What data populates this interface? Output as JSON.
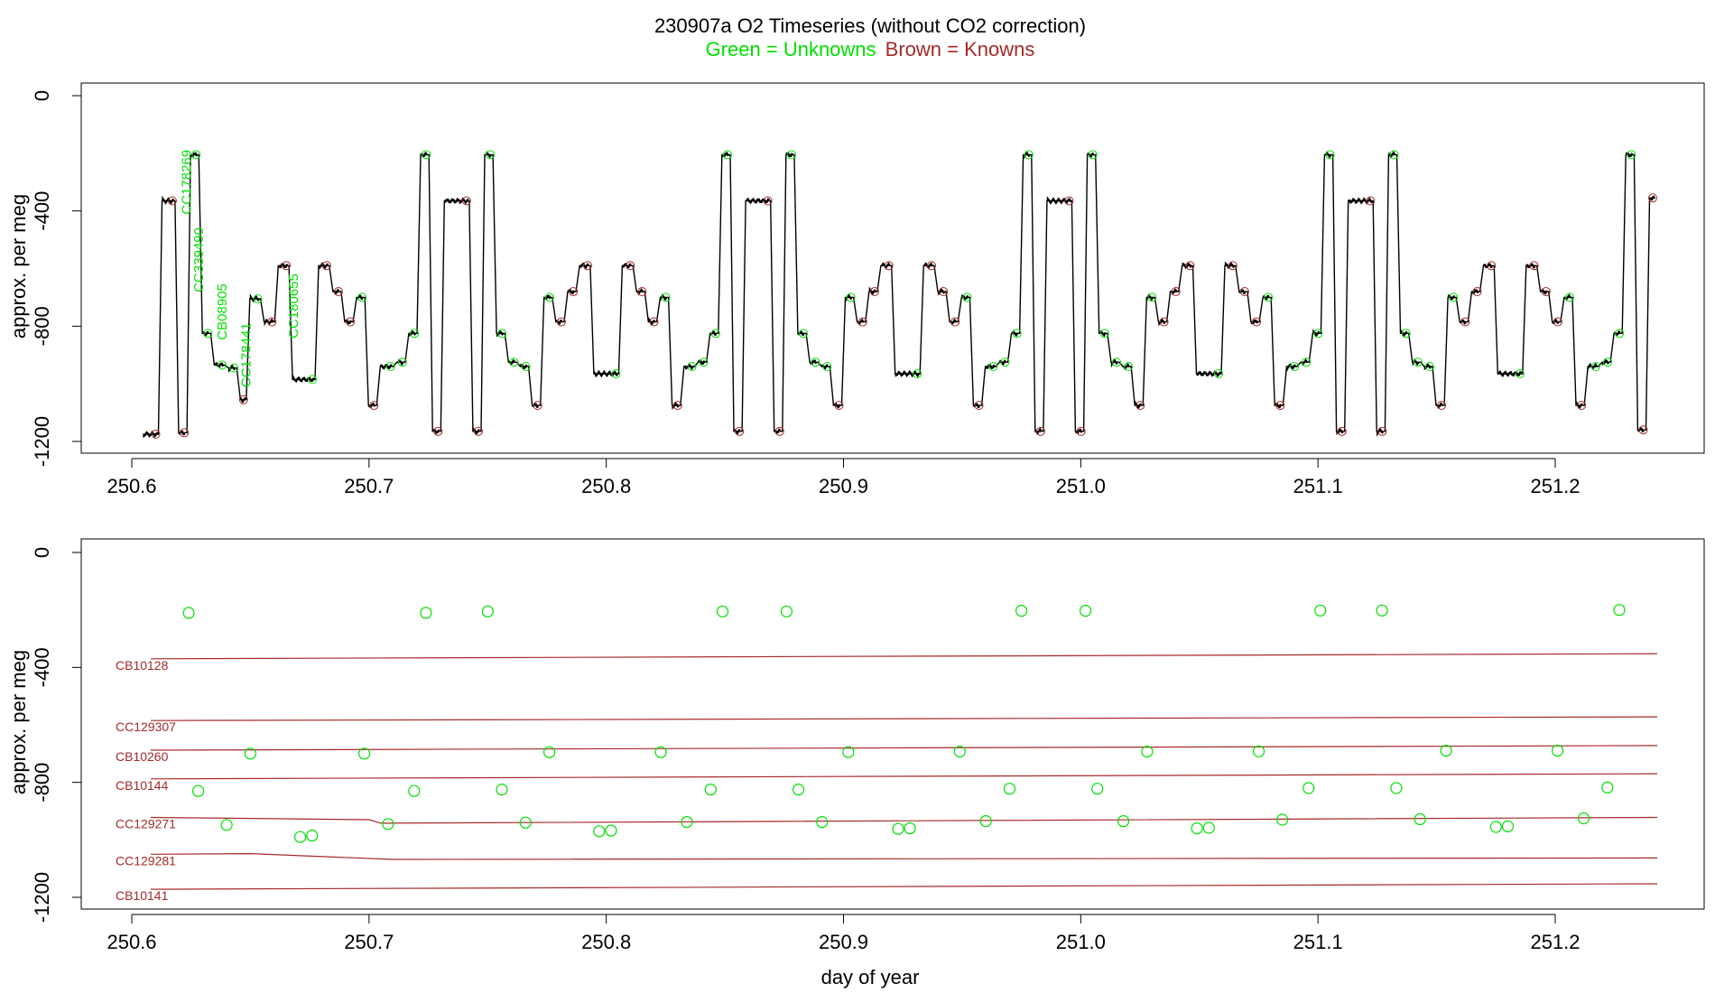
{
  "title": "230907a   O2 Timeseries (without CO2 correction)",
  "subtitle": {
    "unknowns": "Green = Unknowns",
    "knowns": "Brown = Knowns"
  },
  "colors": {
    "unknown": "#00e000",
    "known": "#a52a2a",
    "trace": "#000000"
  },
  "chart_data": [
    {
      "type": "line",
      "ylabel": "approx. per meg",
      "xlabel": "",
      "xlim": [
        250.6,
        251.25
      ],
      "ylim": [
        -1200,
        0
      ],
      "x_ticks": [
        "250.6",
        "250.7",
        "250.8",
        "250.9",
        "251.0",
        "251.1",
        "251.2"
      ],
      "y_ticks": [
        "0",
        "-400",
        "-800",
        "-1200"
      ],
      "annotations": [
        {
          "text": "CC178269",
          "x": 250.625,
          "y": -300
        },
        {
          "text": "CC339490",
          "x": 250.63,
          "y": -570
        },
        {
          "text": "CB08905",
          "x": 250.64,
          "y": -750
        },
        {
          "text": "CC178441",
          "x": 250.65,
          "y": -900
        },
        {
          "text": "CC180655",
          "x": 250.67,
          "y": -730
        }
      ],
      "series": [
        {
          "role": "trace",
          "segments": [
            [
              250.604,
              250.612,
              -1175
            ],
            [
              250.612,
              250.619,
              -365
            ],
            [
              250.619,
              250.624,
              -1170
            ],
            [
              250.624,
              250.629,
              -205
            ],
            [
              250.629,
              250.634,
              -825
            ],
            [
              250.634,
              250.64,
              -935
            ],
            [
              250.64,
              250.645,
              -945
            ],
            [
              250.645,
              250.649,
              -1055
            ],
            [
              250.649,
              250.655,
              -705
            ],
            [
              250.655,
              250.661,
              -785
            ],
            [
              250.661,
              250.667,
              -590
            ],
            [
              250.667,
              250.678,
              -985
            ],
            [
              250.678,
              250.684,
              -590
            ],
            [
              250.684,
              250.689,
              -680
            ],
            [
              250.689,
              250.694,
              -785
            ],
            [
              250.694,
              250.699,
              -700
            ],
            [
              250.699,
              250.704,
              -1075
            ],
            [
              250.704,
              250.711,
              -940
            ],
            [
              250.711,
              250.716,
              -925
            ],
            [
              250.716,
              250.721,
              -825
            ],
            [
              250.721,
              250.726,
              -205
            ],
            [
              250.726,
              250.731,
              -1165
            ],
            [
              250.731,
              250.743,
              -365
            ],
            [
              250.743,
              250.748,
              -1165
            ],
            [
              250.748,
              250.753,
              -205
            ],
            [
              250.753,
              250.758,
              -825
            ],
            [
              250.758,
              250.763,
              -925
            ],
            [
              250.763,
              250.768,
              -940
            ],
            [
              250.768,
              250.773,
              -1075
            ],
            [
              250.773,
              250.778,
              -700
            ],
            [
              250.778,
              250.783,
              -785
            ],
            [
              250.783,
              250.788,
              -680
            ],
            [
              250.788,
              250.794,
              -590
            ],
            [
              250.794,
              250.806,
              -965
            ],
            [
              250.806,
              250.812,
              -590
            ],
            [
              250.812,
              250.817,
              -680
            ],
            [
              250.817,
              250.822,
              -785
            ],
            [
              250.822,
              250.827,
              -700
            ],
            [
              250.827,
              250.832,
              -1075
            ],
            [
              250.832,
              250.838,
              -940
            ],
            [
              250.838,
              250.843,
              -925
            ],
            [
              250.843,
              250.848,
              -825
            ],
            [
              250.848,
              250.853,
              -205
            ],
            [
              250.853,
              250.858,
              -1165
            ],
            [
              250.858,
              250.87,
              -365
            ],
            [
              250.87,
              250.875,
              -1165
            ],
            [
              250.875,
              250.88,
              -205
            ],
            [
              250.88,
              250.885,
              -825
            ],
            [
              250.885,
              250.89,
              -925
            ],
            [
              250.89,
              250.895,
              -940
            ],
            [
              250.895,
              250.9,
              -1075
            ],
            [
              250.9,
              250.905,
              -700
            ],
            [
              250.905,
              250.91,
              -785
            ],
            [
              250.91,
              250.915,
              -680
            ],
            [
              250.915,
              250.921,
              -590
            ],
            [
              250.921,
              250.933,
              -965
            ],
            [
              250.933,
              250.939,
              -590
            ],
            [
              250.939,
              250.944,
              -680
            ],
            [
              250.944,
              250.949,
              -785
            ],
            [
              250.949,
              250.954,
              -700
            ],
            [
              250.954,
              250.959,
              -1075
            ],
            [
              250.959,
              250.965,
              -940
            ],
            [
              250.965,
              250.97,
              -925
            ],
            [
              250.97,
              250.975,
              -825
            ],
            [
              250.975,
              250.98,
              -205
            ],
            [
              250.98,
              250.985,
              -1165
            ],
            [
              250.985,
              250.997,
              -365
            ],
            [
              250.997,
              251.002,
              -1165
            ],
            [
              251.002,
              251.007,
              -205
            ],
            [
              251.007,
              251.012,
              -825
            ],
            [
              251.012,
              251.017,
              -925
            ],
            [
              251.017,
              251.022,
              -940
            ],
            [
              251.022,
              251.027,
              -1075
            ],
            [
              251.027,
              251.032,
              -700
            ],
            [
              251.032,
              251.037,
              -785
            ],
            [
              251.037,
              251.042,
              -680
            ],
            [
              251.042,
              251.048,
              -590
            ],
            [
              251.048,
              251.06,
              -965
            ],
            [
              251.06,
              251.066,
              -590
            ],
            [
              251.066,
              251.071,
              -680
            ],
            [
              251.071,
              251.076,
              -785
            ],
            [
              251.076,
              251.081,
              -700
            ],
            [
              251.081,
              251.086,
              -1075
            ],
            [
              251.086,
              251.092,
              -940
            ],
            [
              251.092,
              251.097,
              -925
            ],
            [
              251.097,
              251.102,
              -825
            ],
            [
              251.102,
              251.107,
              -205
            ],
            [
              251.107,
              251.112,
              -1165
            ],
            [
              251.112,
              251.124,
              -365
            ],
            [
              251.124,
              251.129,
              -1165
            ],
            [
              251.129,
              251.134,
              -205
            ],
            [
              251.134,
              251.139,
              -825
            ],
            [
              251.139,
              251.144,
              -925
            ],
            [
              251.144,
              251.149,
              -940
            ],
            [
              251.149,
              251.154,
              -1075
            ],
            [
              251.154,
              251.159,
              -700
            ],
            [
              251.159,
              251.164,
              -785
            ],
            [
              251.164,
              251.169,
              -680
            ],
            [
              251.169,
              251.175,
              -590
            ],
            [
              251.175,
              251.187,
              -965
            ],
            [
              251.187,
              251.193,
              -590
            ],
            [
              251.193,
              251.198,
              -680
            ],
            [
              251.198,
              251.203,
              -785
            ],
            [
              251.203,
              251.208,
              -700
            ],
            [
              251.208,
              251.213,
              -1075
            ],
            [
              251.213,
              251.219,
              -940
            ],
            [
              251.219,
              251.224,
              -925
            ],
            [
              251.224,
              251.229,
              -825
            ],
            [
              251.229,
              251.234,
              -205
            ],
            [
              251.234,
              251.239,
              -1160
            ],
            [
              251.239,
              251.243,
              -355
            ]
          ]
        }
      ]
    },
    {
      "type": "scatter",
      "xlabel": "day of year",
      "ylabel": "approx. per meg",
      "xlim": [
        250.6,
        251.25
      ],
      "ylim": [
        -1200,
        0
      ],
      "x_ticks": [
        "250.6",
        "250.7",
        "250.8",
        "250.9",
        "251.0",
        "251.1",
        "251.2"
      ],
      "y_ticks": [
        "0",
        "-400",
        "-800",
        "-1200"
      ],
      "known_lines": [
        {
          "name": "CB10128",
          "points": [
            [
              250.608,
              -370
            ],
            [
              251.243,
              -352
            ]
          ]
        },
        {
          "name": "CC129307",
          "points": [
            [
              250.608,
              -585
            ],
            [
              251.243,
              -572
            ]
          ]
        },
        {
          "name": "CB10260",
          "points": [
            [
              250.608,
              -688
            ],
            [
              251.243,
              -672
            ]
          ]
        },
        {
          "name": "CB10144",
          "points": [
            [
              250.608,
              -788
            ],
            [
              251.243,
              -770
            ]
          ]
        },
        {
          "name": "CC129271",
          "points": [
            [
              250.608,
              -922
            ],
            [
              250.7,
              -930
            ],
            [
              250.705,
              -942
            ],
            [
              251.243,
              -922
            ]
          ]
        },
        {
          "name": "CC129281",
          "points": [
            [
              250.608,
              -1050
            ],
            [
              250.65,
              -1048
            ],
            [
              250.71,
              -1068
            ],
            [
              251.243,
              -1063
            ]
          ]
        },
        {
          "name": "CB10141",
          "points": [
            [
              250.608,
              -1172
            ],
            [
              251.243,
              -1153
            ]
          ]
        }
      ],
      "unknowns": [
        [
          250.624,
          -210
        ],
        [
          250.628,
          -830
        ],
        [
          250.64,
          -948
        ],
        [
          250.65,
          -700
        ],
        [
          250.671,
          -990
        ],
        [
          250.676,
          -985
        ],
        [
          250.698,
          -700
        ],
        [
          250.708,
          -945
        ],
        [
          250.719,
          -830
        ],
        [
          250.724,
          -210
        ],
        [
          250.75,
          -205
        ],
        [
          250.756,
          -825
        ],
        [
          250.766,
          -940
        ],
        [
          250.776,
          -695
        ],
        [
          250.797,
          -970
        ],
        [
          250.802,
          -968
        ],
        [
          250.823,
          -695
        ],
        [
          250.834,
          -938
        ],
        [
          250.844,
          -825
        ],
        [
          250.849,
          -205
        ],
        [
          250.876,
          -205
        ],
        [
          250.881,
          -825
        ],
        [
          250.891,
          -938
        ],
        [
          250.902,
          -695
        ],
        [
          250.923,
          -962
        ],
        [
          250.928,
          -960
        ],
        [
          250.949,
          -693
        ],
        [
          250.96,
          -935
        ],
        [
          250.97,
          -822
        ],
        [
          250.975,
          -203
        ],
        [
          251.002,
          -203
        ],
        [
          251.007,
          -822
        ],
        [
          251.018,
          -935
        ],
        [
          251.028,
          -693
        ],
        [
          251.049,
          -960
        ],
        [
          251.054,
          -958
        ],
        [
          251.075,
          -692
        ],
        [
          251.085,
          -930
        ],
        [
          251.096,
          -820
        ],
        [
          251.101,
          -202
        ],
        [
          251.127,
          -202
        ],
        [
          251.133,
          -820
        ],
        [
          251.143,
          -928
        ],
        [
          251.154,
          -690
        ],
        [
          251.175,
          -955
        ],
        [
          251.18,
          -953
        ],
        [
          251.201,
          -690
        ],
        [
          251.212,
          -925
        ],
        [
          251.222,
          -818
        ],
        [
          251.227,
          -200
        ]
      ]
    }
  ]
}
